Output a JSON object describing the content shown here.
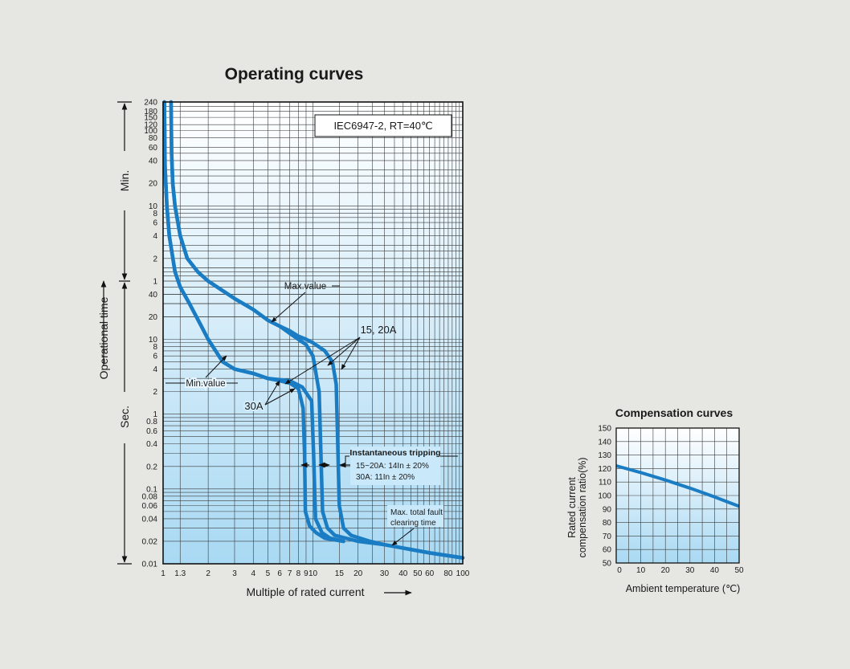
{
  "colors": {
    "background": "#e6e6e2",
    "curve": "#1a7dc4",
    "panel_top": "#ffffff",
    "panel_bottom": "#a9d9f3"
  },
  "chart_data": [
    {
      "type": "line",
      "title": "Operating curves",
      "annotation": "IEC6947-2, RT=40℃",
      "xlabel": "Multiple of rated current",
      "x_scale": "log",
      "xlim": [
        1,
        100
      ],
      "x_ticks": [
        1,
        1.3,
        2,
        3,
        4,
        5,
        6,
        7,
        8,
        9,
        10,
        15,
        20,
        30,
        40,
        50,
        60,
        80,
        100
      ],
      "x_tick_labels": [
        "1",
        "1.3",
        "2",
        "3",
        "4",
        "5",
        "6",
        "7",
        "8",
        "9",
        "10",
        "15",
        "20",
        "30",
        "40",
        "50",
        "60",
        "80",
        "100"
      ],
      "ylabel": "Operational time",
      "y_scale": "log",
      "y_unit_labels": [
        "Min.",
        "Sec."
      ],
      "y_ticks_min": [
        {
          "label": "240",
          "sec": 14400
        },
        {
          "label": "180",
          "sec": 10800
        },
        {
          "label": "150",
          "sec": 9000
        },
        {
          "label": "120",
          "sec": 7200
        },
        {
          "label": "100",
          "sec": 6000
        },
        {
          "label": "80",
          "sec": 4800
        },
        {
          "label": "60",
          "sec": 3600
        },
        {
          "label": "40",
          "sec": 2400
        },
        {
          "label": "20",
          "sec": 1200
        },
        {
          "label": "10",
          "sec": 600
        },
        {
          "label": "8",
          "sec": 480
        },
        {
          "label": "6",
          "sec": 360
        },
        {
          "label": "4",
          "sec": 240
        },
        {
          "label": "2",
          "sec": 120
        },
        {
          "label": "1",
          "sec": 60
        }
      ],
      "y_ticks_sec": [
        {
          "label": "40",
          "sec": 40
        },
        {
          "label": "20",
          "sec": 20
        },
        {
          "label": "10",
          "sec": 10
        },
        {
          "label": "8",
          "sec": 8
        },
        {
          "label": "6",
          "sec": 6
        },
        {
          "label": "4",
          "sec": 4
        },
        {
          "label": "2",
          "sec": 2
        },
        {
          "label": "1",
          "sec": 1
        },
        {
          "label": "0.8",
          "sec": 0.8
        },
        {
          "label": "0.6",
          "sec": 0.6
        },
        {
          "label": "0.4",
          "sec": 0.4
        },
        {
          "label": "0.2",
          "sec": 0.2
        },
        {
          "label": "0.1",
          "sec": 0.1
        },
        {
          "label": "0.08",
          "sec": 0.08
        },
        {
          "label": "0.06",
          "sec": 0.06
        },
        {
          "label": "0.04",
          "sec": 0.04
        },
        {
          "label": "0.02",
          "sec": 0.02
        },
        {
          "label": "0.01",
          "sec": 0.01
        }
      ],
      "series": [
        {
          "name": "Max.value",
          "points": [
            [
              1.13,
              14400
            ],
            [
              1.14,
              3000
            ],
            [
              1.16,
              1200
            ],
            [
              1.2,
              600
            ],
            [
              1.3,
              240
            ],
            [
              1.45,
              120
            ],
            [
              1.7,
              80
            ],
            [
              2,
              60
            ],
            [
              3,
              35
            ],
            [
              4,
              25
            ],
            [
              5,
              18
            ],
            [
              6,
              15
            ],
            [
              7,
              12
            ],
            [
              8,
              10
            ],
            [
              9,
              8.5
            ],
            [
              10,
              6
            ],
            [
              11,
              2
            ],
            [
              11.3,
              0.3
            ],
            [
              11.6,
              0.05
            ],
            [
              12.5,
              0.03
            ],
            [
              14,
              0.024
            ],
            [
              20,
              0.02
            ],
            [
              30,
              0.018
            ],
            [
              60,
              0.014
            ],
            [
              100,
              0.012
            ]
          ]
        },
        {
          "name": "Max.value",
          "points": [
            [
              1.13,
              14400
            ],
            [
              1.14,
              3000
            ],
            [
              1.16,
              1200
            ],
            [
              1.2,
              600
            ],
            [
              1.3,
              240
            ],
            [
              1.45,
              120
            ],
            [
              1.7,
              80
            ],
            [
              2,
              60
            ],
            [
              3,
              35
            ],
            [
              4,
              25
            ],
            [
              5,
              18
            ],
            [
              6,
              15
            ],
            [
              7,
              13
            ],
            [
              8,
              11
            ],
            [
              9,
              10
            ],
            [
              10,
              9
            ],
            [
              12,
              7
            ],
            [
              13.5,
              5
            ],
            [
              14.3,
              2.5
            ],
            [
              14.6,
              0.5
            ],
            [
              15,
              0.06
            ],
            [
              16,
              0.03
            ],
            [
              18,
              0.024
            ],
            [
              24,
              0.02
            ],
            [
              30,
              0.018
            ],
            [
              60,
              0.014
            ],
            [
              100,
              0.012
            ]
          ]
        },
        {
          "name": "Min.value",
          "points": [
            [
              1.02,
              14400
            ],
            [
              1.03,
              2000
            ],
            [
              1.06,
              600
            ],
            [
              1.1,
              240
            ],
            [
              1.2,
              80
            ],
            [
              1.3,
              50
            ],
            [
              1.5,
              30
            ],
            [
              1.8,
              15
            ],
            [
              2,
              10
            ],
            [
              2.5,
              5
            ],
            [
              3,
              4
            ],
            [
              4,
              3.5
            ],
            [
              5,
              3
            ],
            [
              7,
              2.8
            ],
            [
              8.5,
              2.3
            ],
            [
              9.8,
              1.5
            ],
            [
              10.1,
              0.3
            ],
            [
              10.4,
              0.04
            ],
            [
              11.5,
              0.026
            ],
            [
              13,
              0.022
            ],
            [
              16,
              0.02
            ]
          ]
        },
        {
          "name": "Min.value",
          "points": [
            [
              1.02,
              14400
            ],
            [
              1.03,
              2000
            ],
            [
              1.06,
              600
            ],
            [
              1.1,
              240
            ],
            [
              1.2,
              80
            ],
            [
              1.3,
              50
            ],
            [
              1.5,
              30
            ],
            [
              1.8,
              15
            ],
            [
              2,
              10
            ],
            [
              2.5,
              5
            ],
            [
              3,
              4
            ],
            [
              4,
              3.5
            ],
            [
              5,
              3
            ],
            [
              6,
              2.8
            ],
            [
              7,
              2.6
            ],
            [
              8,
              2.2
            ],
            [
              8.6,
              1.2
            ],
            [
              8.8,
              0.3
            ],
            [
              8.9,
              0.05
            ],
            [
              9.5,
              0.032
            ],
            [
              10.5,
              0.026
            ],
            [
              12,
              0.022
            ],
            [
              16,
              0.02
            ]
          ]
        }
      ],
      "labels": {
        "max_value": "Max.value",
        "min_value": "Min.value",
        "rating_15_20": "15, 20A",
        "rating_30": "30A",
        "instantaneous_title": "Instantaneous tripping",
        "instantaneous_line1": "15~20A: 14In ± 20%",
        "instantaneous_line2": "30A: 11In ± 20%",
        "fault_line1": "Max. total fault",
        "fault_line2": "clearing time"
      }
    },
    {
      "type": "line",
      "title": "Compensation curves",
      "xlabel": "Ambient temperature (℃)",
      "ylabel_line1": "Rated current",
      "ylabel_line2": "compensation ratio(%)",
      "xlim": [
        0,
        50
      ],
      "ylim": [
        50,
        150
      ],
      "x_ticks": [
        0,
        10,
        20,
        30,
        40,
        50
      ],
      "y_ticks": [
        50,
        60,
        70,
        80,
        90,
        100,
        110,
        120,
        130,
        140,
        150
      ],
      "series": [
        {
          "points": [
            [
              0,
              122
            ],
            [
              10,
              117
            ],
            [
              20,
              111.5
            ],
            [
              30,
              105.5
            ],
            [
              40,
              99
            ],
            [
              45,
              95.5
            ],
            [
              50,
              92
            ]
          ]
        }
      ]
    }
  ]
}
